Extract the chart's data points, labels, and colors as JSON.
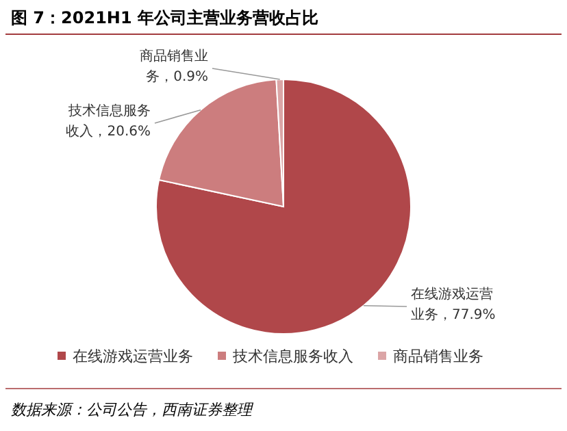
{
  "chart_data": {
    "type": "pie",
    "title": "图 7：2021H1 年公司主营业务营收占比",
    "categories": [
      "在线游戏运营业务",
      "技术信息服务收入",
      "商品销售业务"
    ],
    "values": [
      77.9,
      20.6,
      0.9
    ],
    "colors": [
      "#b0474a",
      "#cc7d7e",
      "#dba5a6"
    ],
    "value_labels": [
      "在线游戏运营业务，77.9%",
      "技术信息服务收入，20.6%",
      "商品销售业务，0.9%"
    ],
    "legend": "bottom",
    "annotations": [
      "数据来源：公司公告，西南证券整理"
    ]
  }
}
